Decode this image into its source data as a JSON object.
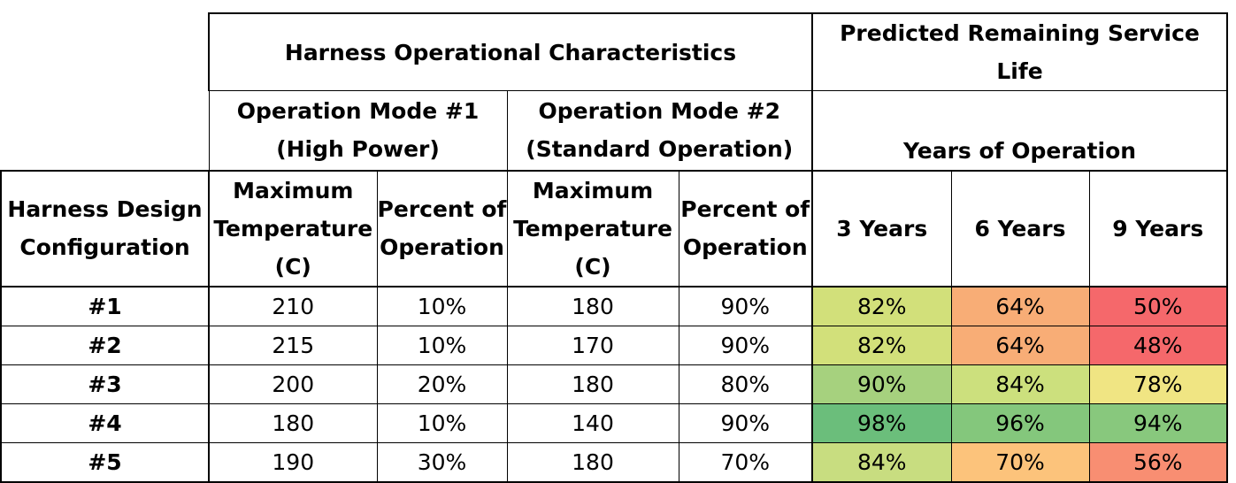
{
  "table": {
    "group_headers": {
      "operational": "Harness Operational Characteristics",
      "service_life": "Predicted Remaining Service Life"
    },
    "mode1": {
      "line1": "Operation Mode #1",
      "line2": "(High Power)"
    },
    "mode2": {
      "line1": "Operation Mode #2",
      "line2": "(Standard Operation)"
    },
    "years_of_operation": "Years of Operation",
    "columns": {
      "config": [
        "Harness Design",
        "Configuration"
      ],
      "max_temp": [
        "Maximum",
        "Temperature",
        "(C)"
      ],
      "percent_op": [
        "Percent of",
        "Operation"
      ],
      "years": [
        "3 Years",
        "6 Years",
        "9 Years"
      ]
    },
    "rows": [
      {
        "config": "#1",
        "m1_temp": "210",
        "m1_pct": "10%",
        "m2_temp": "180",
        "m2_pct": "90%",
        "y3": "82%",
        "y6": "64%",
        "y9": "50%"
      },
      {
        "config": "#2",
        "m1_temp": "215",
        "m1_pct": "10%",
        "m2_temp": "170",
        "m2_pct": "90%",
        "y3": "82%",
        "y6": "64%",
        "y9": "48%"
      },
      {
        "config": "#3",
        "m1_temp": "200",
        "m1_pct": "20%",
        "m2_temp": "180",
        "m2_pct": "80%",
        "y3": "90%",
        "y6": "84%",
        "y9": "78%"
      },
      {
        "config": "#4",
        "m1_temp": "180",
        "m1_pct": "10%",
        "m2_temp": "140",
        "m2_pct": "90%",
        "y3": "98%",
        "y6": "96%",
        "y9": "94%"
      },
      {
        "config": "#5",
        "m1_temp": "190",
        "m1_pct": "30%",
        "m2_temp": "180",
        "m2_pct": "70%",
        "y3": "84%",
        "y6": "70%",
        "y9": "56%"
      }
    ],
    "heat_colors": {
      "r1": [
        "#d2e07a",
        "#f8ad76",
        "#f5686b"
      ],
      "r2": [
        "#d2e07a",
        "#f8ad76",
        "#f5686b"
      ],
      "r3": [
        "#a6d17e",
        "#cce07d",
        "#f0e583"
      ],
      "r4": [
        "#6bbe7b",
        "#84c77c",
        "#88c87d"
      ],
      "r5": [
        "#c8dd80",
        "#fcc37b",
        "#f88e72"
      ]
    }
  }
}
